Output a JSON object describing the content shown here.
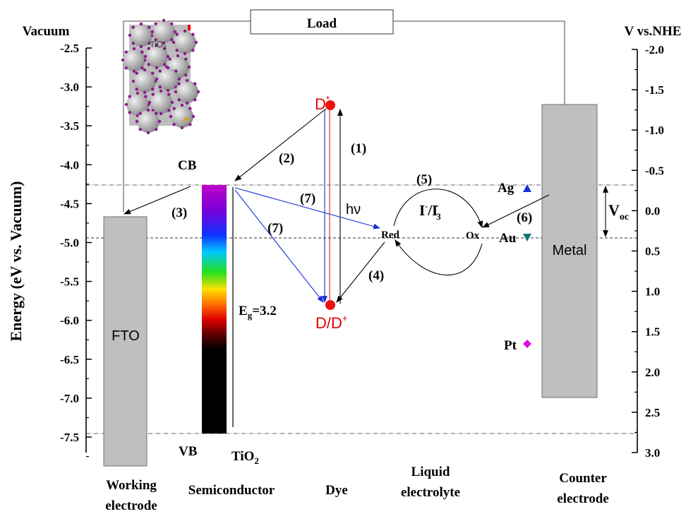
{
  "axes": {
    "left_title": "Energy (eV vs. Vacuum)",
    "left_header": "Vacuum",
    "right_header": "V vs.NHE",
    "left_ticks": [
      "-2.5",
      "-3.0",
      "-3.5",
      "-4.0",
      "-4.5",
      "-5.0",
      "-5.5",
      "-6.0",
      "-6.5",
      "-7.0",
      "-7.5"
    ],
    "right_ticks": [
      "-2.0",
      "-1.5",
      "-1.0",
      "-0.5",
      "0.0",
      "0.5",
      "1.0",
      "1.5",
      "2.0",
      "2.5",
      "3.0"
    ]
  },
  "labels": {
    "load": "Load",
    "fto": "FTO",
    "metal": "Metal",
    "cb": "CB",
    "vb": "VB",
    "tio2": {
      "base": "TiO",
      "sub": "2"
    },
    "inset": {
      "base": "TiO",
      "sub": "2"
    },
    "eg": {
      "base": "E",
      "sub": "g",
      "rest": "=3.2"
    },
    "d_star": {
      "base": "D",
      "sup": "*"
    },
    "d_ground": {
      "base": "D/D",
      "sup": "+"
    },
    "hv": "hν",
    "red": "Red",
    "ox": "Ox",
    "redox": {
      "a": "I",
      "a_sup": "-",
      "b": "/I",
      "b_sub": "3",
      "b_sup": "-"
    },
    "voc": {
      "base": "V",
      "sub": "oc"
    },
    "ag": "Ag",
    "au": "Au",
    "pt": "Pt",
    "steps": [
      "(1)",
      "(2)",
      "(3)",
      "(4)",
      "(5)",
      "(6)",
      "(7)",
      "(7)"
    ]
  },
  "footer": {
    "working": [
      "Working",
      "electrode"
    ],
    "semiconductor": "Semiconductor",
    "dye": "Dye",
    "electrolyte": [
      "Liquid",
      "electrolyte"
    ],
    "counter": [
      "Counter",
      "electrode"
    ]
  }
}
